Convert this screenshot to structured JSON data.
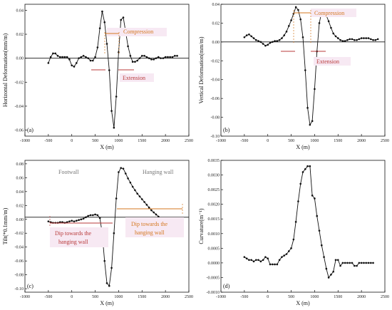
{
  "colors": {
    "orange": "#d4771f",
    "red": "#b83a3a",
    "grey": "#777777",
    "series": "#111111"
  },
  "chart_data": [
    {
      "id": "a",
      "type": "line",
      "panel_label": "(a)",
      "xlabel": "X (m)",
      "ylabel": "Horizontal  Deformation(mm/m)",
      "xlim": [
        -1000,
        2500
      ],
      "ylim": [
        -0.065,
        0.045
      ],
      "xticks": [
        -1000,
        -500,
        0,
        500,
        1000,
        1500,
        2000,
        2500
      ],
      "yticks": [
        0.04,
        0.02,
        0.0,
        -0.02,
        -0.04,
        -0.06
      ],
      "ytick_labels": [
        "0.04",
        "0.02",
        "0.00",
        "-0.02",
        "-0.04",
        "-0.06"
      ],
      "series": [
        {
          "x": [
            -500,
            -450,
            -400,
            -350,
            -300,
            -250,
            -200,
            -150,
            -100,
            -50,
            0,
            50,
            100,
            150,
            200,
            250,
            300,
            350,
            400,
            450,
            500,
            550,
            600,
            650,
            700,
            750,
            800,
            850,
            900,
            950,
            1000,
            1050,
            1100,
            1150,
            1200,
            1250,
            1300,
            1350,
            1400,
            1450,
            1500,
            1550,
            1600,
            1650,
            1700,
            1750,
            1800,
            1850,
            1900,
            1950,
            2000,
            2050,
            2100,
            2150,
            2200,
            2250
          ],
          "y": [
            -0.004,
            0.001,
            0.004,
            0.004,
            0.002,
            0.001,
            0.001,
            0.001,
            0.001,
            -0.001,
            -0.006,
            -0.007,
            -0.004,
            0.0,
            0.001,
            0.002,
            0.001,
            0.0,
            -0.002,
            -0.002,
            0.001,
            0.009,
            0.025,
            0.039,
            0.03,
            0.012,
            -0.01,
            -0.044,
            -0.058,
            -0.032,
            0.005,
            0.032,
            0.034,
            0.022,
            0.01,
            0.002,
            -0.003,
            -0.003,
            -0.002,
            0.0,
            0.002,
            0.002,
            0.001,
            0.0,
            -0.001,
            -0.001,
            0.0,
            0.001,
            0.0,
            0.0,
            0.001,
            0.001,
            0.001,
            0.001,
            0.002,
            0.002
          ]
        }
      ],
      "annotations": {
        "compression": "Compression",
        "extension": "Extension"
      }
    },
    {
      "id": "b",
      "type": "line",
      "panel_label": "(b)",
      "xlabel": "X (m)",
      "ylabel": "Vertical  Deformation(mm/m)",
      "xlim": [
        -1000,
        2500
      ],
      "ylim": [
        -0.1,
        0.04
      ],
      "xticks": [
        -1000,
        -500,
        0,
        500,
        1000,
        1500,
        2000,
        2500
      ],
      "yticks": [
        0.04,
        0.02,
        0.0,
        -0.02,
        -0.04,
        -0.06,
        -0.08,
        -0.1
      ],
      "ytick_labels": [
        "0.04",
        "0.02",
        "0.00",
        "-0.02",
        "-0.04",
        "-0.06",
        "-0.08",
        "-0.10"
      ],
      "series": [
        {
          "x": [
            -500,
            -450,
            -400,
            -350,
            -300,
            -250,
            -200,
            -150,
            -100,
            -50,
            0,
            50,
            100,
            150,
            200,
            250,
            300,
            350,
            400,
            450,
            500,
            550,
            600,
            650,
            700,
            750,
            800,
            850,
            900,
            950,
            1000,
            1050,
            1100,
            1150,
            1200,
            1250,
            1300,
            1350,
            1400,
            1450,
            1500,
            1550,
            1600,
            1650,
            1700,
            1750,
            1800,
            1850,
            1900,
            1950,
            2000,
            2050,
            2100,
            2150,
            2200,
            2250,
            2300,
            2350
          ],
          "y": [
            0.005,
            0.007,
            0.008,
            0.006,
            0.004,
            0.002,
            0.001,
            0.0,
            -0.002,
            -0.004,
            -0.003,
            -0.001,
            0.0,
            0.001,
            0.001,
            0.002,
            0.004,
            0.007,
            0.011,
            0.017,
            0.023,
            0.03,
            0.037,
            0.034,
            0.024,
            0.005,
            -0.03,
            -0.07,
            -0.088,
            -0.084,
            -0.05,
            -0.01,
            0.02,
            0.032,
            0.033,
            0.028,
            0.022,
            0.015,
            0.009,
            0.006,
            0.004,
            0.002,
            0.001,
            0.001,
            0.002,
            0.003,
            0.003,
            0.002,
            0.002,
            0.003,
            0.004,
            0.004,
            0.004,
            0.004,
            0.003,
            0.002,
            0.002,
            0.003
          ]
        }
      ],
      "annotations": {
        "compression": "Compression",
        "extension": "Extension"
      }
    },
    {
      "id": "c",
      "type": "line",
      "panel_label": "(c)",
      "xlabel": "X (m)",
      "ylabel": "Tilt(*0.1mm/m)",
      "xlim": [
        -1000,
        2500
      ],
      "ylim": [
        -0.105,
        0.085
      ],
      "xticks": [
        -1000,
        -500,
        0,
        500,
        1000,
        1500,
        2000,
        2500
      ],
      "yticks": [
        0.08,
        0.06,
        0.04,
        0.02,
        0.0,
        -0.02,
        -0.04,
        -0.06,
        -0.08,
        -0.1
      ],
      "ytick_labels": [
        "0.08",
        "0.06",
        "0.04",
        "0.02",
        "0.00",
        "-0.02",
        "-0.04",
        "-0.06",
        "-0.08",
        "-0.10"
      ],
      "series": [
        {
          "x": [
            -500,
            -450,
            -400,
            -350,
            -300,
            -250,
            -200,
            -150,
            -100,
            -50,
            0,
            50,
            100,
            150,
            200,
            250,
            300,
            350,
            400,
            450,
            500,
            550,
            600,
            650,
            700,
            750,
            800,
            850,
            900,
            950,
            1000,
            1050,
            1100,
            1150,
            1200,
            1250,
            1300,
            1350,
            1400,
            1450,
            1500,
            1550,
            1600,
            1650,
            1700,
            1750,
            1800,
            1850,
            1900,
            1950,
            2000,
            2050,
            2100,
            2150,
            2200,
            2250
          ],
          "y": [
            -0.003,
            -0.004,
            -0.005,
            -0.005,
            -0.005,
            -0.004,
            -0.004,
            -0.005,
            -0.004,
            -0.003,
            -0.002,
            -0.003,
            -0.002,
            -0.001,
            0.0,
            0.001,
            0.003,
            0.005,
            0.006,
            0.006,
            0.007,
            0.006,
            0.002,
            -0.02,
            -0.06,
            -0.092,
            -0.096,
            -0.07,
            -0.02,
            0.03,
            0.068,
            0.074,
            0.073,
            0.066,
            0.059,
            0.053,
            0.047,
            0.042,
            0.037,
            0.033,
            0.029,
            0.025,
            0.021,
            0.017,
            0.013,
            0.01,
            0.007,
            0.004,
            0.002,
            0.001,
            0.0,
            0.0,
            0.0,
            0.0,
            0.0,
            0.002
          ]
        }
      ],
      "annotations": {
        "footwall": "Footwall",
        "hanging_wall": "Hanging wall",
        "dip_left_1": "Dip towards the",
        "dip_left_2": "hanging wall",
        "dip_right_1": "Dip towards the",
        "dip_right_2": "hanging wall"
      }
    },
    {
      "id": "d",
      "type": "line",
      "panel_label": "(d)",
      "xlabel": "X (m)",
      "ylabel": "Curvature(m⁻¹)",
      "xlim": [
        -1000,
        2500
      ],
      "ylim": [
        -0.001,
        0.0035
      ],
      "xticks": [
        -1000,
        -500,
        0,
        500,
        1000,
        1500,
        2000,
        2500
      ],
      "yticks": [
        0.0035,
        0.003,
        0.0025,
        0.002,
        0.0015,
        0.001,
        0.0005,
        0.0,
        -0.0005,
        -0.001
      ],
      "ytick_labels": [
        "0.0035",
        "0.0030",
        "0.0025",
        "0.0020",
        "0.0015",
        "0.0010",
        "0.0005",
        "0.0000",
        "-0.0005",
        "-0.0010"
      ],
      "series": [
        {
          "x": [
            -500,
            -450,
            -400,
            -350,
            -300,
            -250,
            -200,
            -150,
            -100,
            -50,
            0,
            50,
            100,
            150,
            200,
            250,
            300,
            350,
            400,
            450,
            500,
            550,
            600,
            650,
            700,
            750,
            800,
            850,
            900,
            950,
            1000,
            1050,
            1100,
            1150,
            1200,
            1250,
            1300,
            1350,
            1400,
            1450,
            1500,
            1550,
            1600,
            1650,
            1700,
            1750,
            1800,
            1850,
            1900,
            1950,
            2000,
            2050,
            2100,
            2150,
            2200,
            2250
          ],
          "y": [
            0.0002,
            0.00015,
            0.0001,
            0.0001,
            5e-05,
            0.0001,
            0.0001,
            5e-05,
            0.0001,
            0.0002,
            0.00015,
            -5e-05,
            -5e-05,
            -5e-05,
            -5e-05,
            0.0001,
            0.0002,
            0.00025,
            0.0003,
            0.0004,
            0.0005,
            0.0008,
            0.0014,
            0.0021,
            0.0027,
            0.0031,
            0.0032,
            0.0033,
            0.0033,
            0.0023,
            0.0022,
            0.0016,
            0.0011,
            0.0006,
            0.0002,
            -0.0002,
            -0.0005,
            -0.0004,
            -0.0003,
            0.0001,
            0.0001,
            -0.0001,
            0.0,
            0.0,
            0.0,
            0.0,
            0.0,
            -0.0001,
            -0.0001,
            0.0,
            0.0,
            0.0,
            0.0,
            0.0,
            0.0,
            0.0
          ]
        }
      ],
      "annotations": {}
    }
  ]
}
